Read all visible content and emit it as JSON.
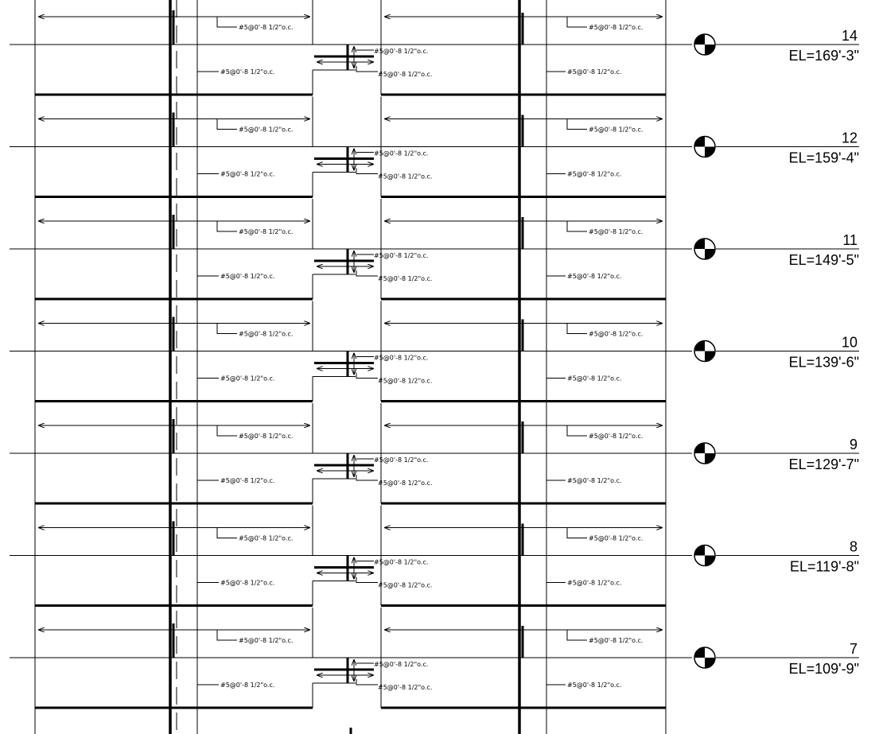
{
  "drawing": {
    "rebar_note": "#5@0'-8 1/2\"o.c.",
    "line_color": "#000000",
    "background": "#ffffff",
    "levels": [
      {
        "number": "14",
        "elevation": "EL=169'-3\""
      },
      {
        "number": "12",
        "elevation": "EL=159'-4\""
      },
      {
        "number": "11",
        "elevation": "EL=149'-5\""
      },
      {
        "number": "10",
        "elevation": "EL=139'-6\""
      },
      {
        "number": "9",
        "elevation": "EL=129'-7\""
      },
      {
        "number": "8",
        "elevation": "EL=119'-8\""
      },
      {
        "number": "7",
        "elevation": "EL=109'-9\""
      }
    ]
  }
}
